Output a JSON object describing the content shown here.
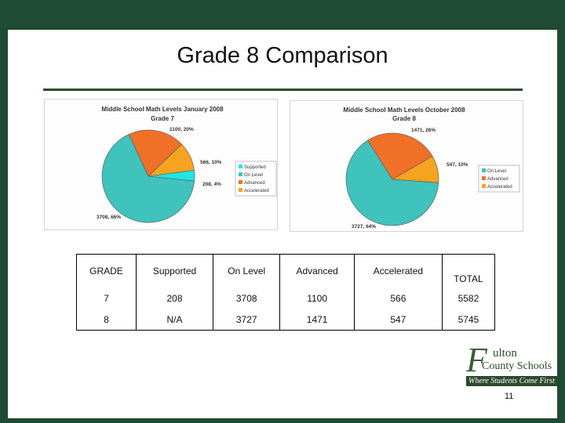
{
  "slide": {
    "title": "Grade 8 Comparison",
    "page_number": "11"
  },
  "chart_data": [
    {
      "type": "pie",
      "title": "Middle School Math Levels January 2008",
      "subtitle": "Grade 7",
      "slices": [
        {
          "name": "Supported",
          "value": 208,
          "label": "208, 4%",
          "color": "#1fe6e6"
        },
        {
          "name": "On Level",
          "value": 3708,
          "label": "3708, 66%",
          "color": "#40c2bd"
        },
        {
          "name": "Advanced",
          "value": 1100,
          "label": "1100, 20%",
          "color": "#f07028"
        },
        {
          "name": "Accelerated",
          "value": 566,
          "label": "566, 10%",
          "color": "#f5a320"
        }
      ],
      "legend": [
        "Supported",
        "On Level",
        "Advanced",
        "Accelerated"
      ],
      "legend_position": "right"
    },
    {
      "type": "pie",
      "title": "Middle School Math Levels October 2008",
      "subtitle": "Grade 8",
      "slices": [
        {
          "name": "On Level",
          "value": 3727,
          "label": "3727, 64%",
          "color": "#40c2bd"
        },
        {
          "name": "Advanced",
          "value": 1471,
          "label": "1471, 26%",
          "color": "#f07028"
        },
        {
          "name": "Accelerated",
          "value": 547,
          "label": "547, 10%",
          "color": "#f5a320"
        }
      ],
      "legend": [
        "On Level",
        "Advanced",
        "Accelerated"
      ],
      "legend_position": "right"
    }
  ],
  "table": {
    "headers": [
      "GRADE",
      "Supported",
      "On Level",
      "Advanced",
      "Accelerated",
      "TOTAL"
    ],
    "rows": [
      [
        "7",
        "208",
        "3708",
        "1100",
        "566",
        "5582"
      ],
      [
        "8",
        "N/A",
        "3727",
        "1471",
        "547",
        "5745"
      ]
    ]
  },
  "logo": {
    "line1": "ulton",
    "line2": "County Schools",
    "tagline": "Where Students Come First"
  },
  "colors": {
    "frame": "#1f4a33",
    "rule": "#2c4a2e",
    "on_level": "#40c2bd",
    "supported": "#1fe6e6",
    "advanced": "#f07028",
    "accelerated": "#f5a320"
  }
}
